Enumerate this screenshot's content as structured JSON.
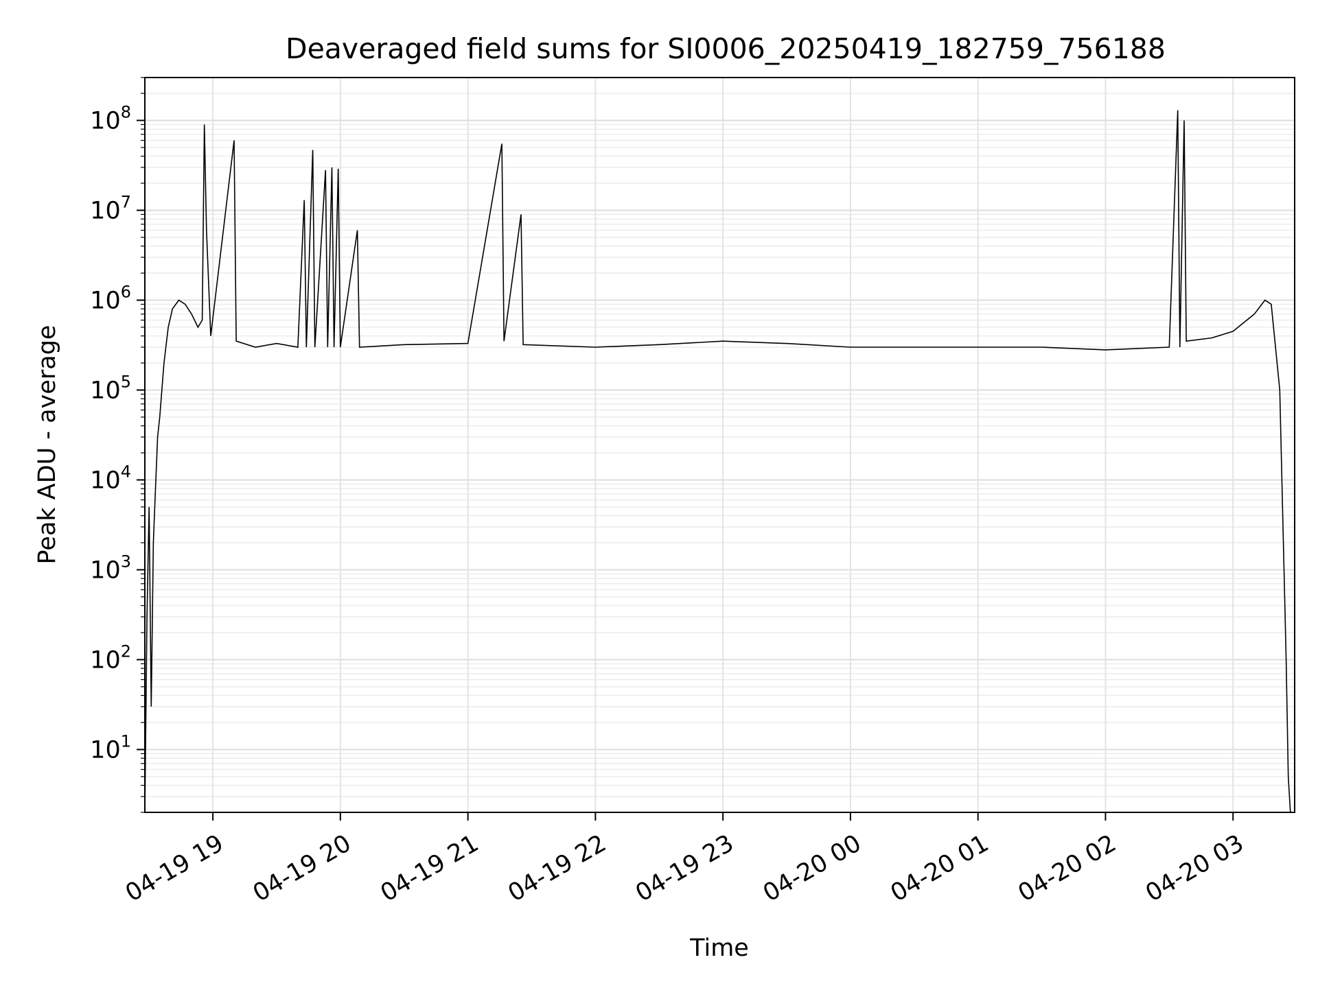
{
  "chart_data": {
    "type": "line",
    "title": "Deaveraged field sums for SI0006_20250419_182759_756188",
    "xlabel": "Time",
    "ylabel": "Peak ADU - average",
    "yscale": "log",
    "ylim": [
      2,
      300000000
    ],
    "xlim": [
      "2025-04-19 18:28",
      "2025-04-20 03:29"
    ],
    "grid": true,
    "x_ticks": [
      "04-19 19",
      "04-19 20",
      "04-19 21",
      "04-19 22",
      "04-19 23",
      "04-20 00",
      "04-20 01",
      "04-20 02",
      "04-20 03"
    ],
    "y_ticks": [
      {
        "base": "10",
        "exp": "1"
      },
      {
        "base": "10",
        "exp": "2"
      },
      {
        "base": "10",
        "exp": "3"
      },
      {
        "base": "10",
        "exp": "4"
      },
      {
        "base": "10",
        "exp": "5"
      },
      {
        "base": "10",
        "exp": "6"
      },
      {
        "base": "10",
        "exp": "7"
      },
      {
        "base": "10",
        "exp": "8"
      }
    ],
    "line_color": "#000000",
    "series": [
      {
        "points": [
          [
            "2025-04-19 18:28",
            2
          ],
          [
            "2025-04-19 18:29",
            300
          ],
          [
            "2025-04-19 18:30",
            5000
          ],
          [
            "2025-04-19 18:31",
            30
          ],
          [
            "2025-04-19 18:32",
            2000
          ],
          [
            "2025-04-19 18:33",
            8000
          ],
          [
            "2025-04-19 18:34",
            30000
          ],
          [
            "2025-04-19 18:35",
            50000
          ],
          [
            "2025-04-19 18:37",
            200000
          ],
          [
            "2025-04-19 18:39",
            500000
          ],
          [
            "2025-04-19 18:41",
            800000
          ],
          [
            "2025-04-19 18:44",
            1000000
          ],
          [
            "2025-04-19 18:47",
            900000
          ],
          [
            "2025-04-19 18:50",
            700000
          ],
          [
            "2025-04-19 18:53",
            500000
          ],
          [
            "2025-04-19 18:55",
            600000
          ],
          [
            "2025-04-19 18:56",
            90000000
          ],
          [
            "2025-04-19 18:57",
            6000000
          ],
          [
            "2025-04-19 18:59",
            400000
          ],
          [
            "2025-04-19 19:10",
            60000000
          ],
          [
            "2025-04-19 19:11",
            350000
          ],
          [
            "2025-04-19 19:20",
            300000
          ],
          [
            "2025-04-19 19:30",
            330000
          ],
          [
            "2025-04-19 19:40",
            300000
          ],
          [
            "2025-04-19 19:43",
            13000000
          ],
          [
            "2025-04-19 19:44",
            300000
          ],
          [
            "2025-04-19 19:47",
            47000000
          ],
          [
            "2025-04-19 19:48",
            300000
          ],
          [
            "2025-04-19 19:53",
            28000000
          ],
          [
            "2025-04-19 19:54",
            300000
          ],
          [
            "2025-04-19 19:56",
            30000000
          ],
          [
            "2025-04-19 19:57",
            300000
          ],
          [
            "2025-04-19 19:59",
            29000000
          ],
          [
            "2025-04-19 20:00",
            300000
          ],
          [
            "2025-04-19 20:08",
            6000000
          ],
          [
            "2025-04-19 20:09",
            300000
          ],
          [
            "2025-04-19 20:30",
            320000
          ],
          [
            "2025-04-19 21:00",
            330000
          ],
          [
            "2025-04-19 21:16",
            55000000
          ],
          [
            "2025-04-19 21:17",
            350000
          ],
          [
            "2025-04-19 21:25",
            9000000
          ],
          [
            "2025-04-19 21:26",
            320000
          ],
          [
            "2025-04-19 22:00",
            300000
          ],
          [
            "2025-04-19 22:30",
            320000
          ],
          [
            "2025-04-19 23:00",
            350000
          ],
          [
            "2025-04-19 23:30",
            330000
          ],
          [
            "2025-04-20 00:00",
            300000
          ],
          [
            "2025-04-20 00:30",
            300000
          ],
          [
            "2025-04-20 01:00",
            300000
          ],
          [
            "2025-04-20 01:30",
            300000
          ],
          [
            "2025-04-20 02:00",
            280000
          ],
          [
            "2025-04-20 02:30",
            300000
          ],
          [
            "2025-04-20 02:34",
            130000000
          ],
          [
            "2025-04-20 02:35",
            300000
          ],
          [
            "2025-04-20 02:37",
            100000000
          ],
          [
            "2025-04-20 02:38",
            350000
          ],
          [
            "2025-04-20 02:50",
            380000
          ],
          [
            "2025-04-20 03:00",
            450000
          ],
          [
            "2025-04-20 03:10",
            700000
          ],
          [
            "2025-04-20 03:15",
            1000000
          ],
          [
            "2025-04-20 03:18",
            900000
          ],
          [
            "2025-04-20 03:22",
            100000
          ],
          [
            "2025-04-20 03:24",
            1000
          ],
          [
            "2025-04-20 03:25",
            100
          ],
          [
            "2025-04-20 03:26",
            5
          ],
          [
            "2025-04-20 03:27",
            2
          ]
        ]
      }
    ]
  }
}
